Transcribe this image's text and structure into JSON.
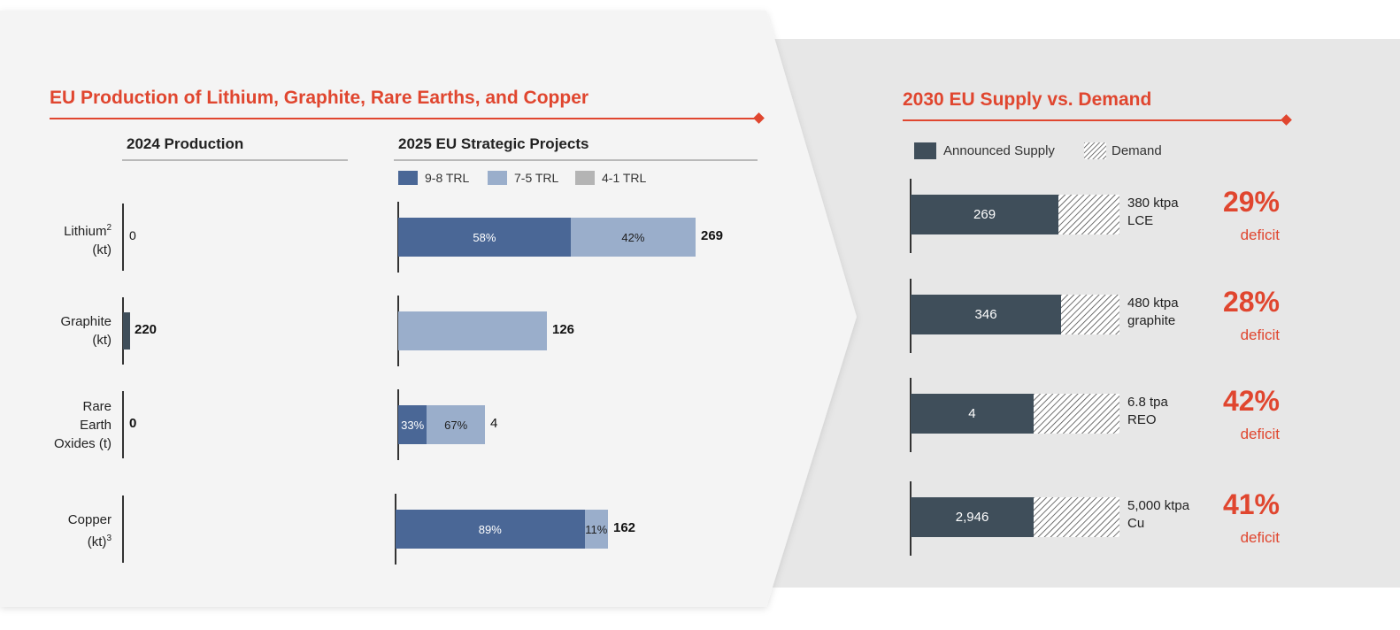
{
  "colors": {
    "accent": "#e0462f",
    "trl_9_8": "#4a6796",
    "trl_7_5": "#9aaecb",
    "trl_4_1": "#b4b4b4",
    "announced_supply": "#3f4e5a",
    "left_panel_bg": "#f4f4f4",
    "right_panel_bg": "#e7e7e7"
  },
  "left_panel": {
    "title": "EU Production of Lithium, Graphite, Rare Earths, and Copper",
    "production_header": "2024 Production",
    "projects_header": "2025 EU Strategic Projects",
    "legend": [
      {
        "label": "9-8 TRL",
        "color": "#4a6796"
      },
      {
        "label": "7-5 TRL",
        "color": "#9aaecb"
      },
      {
        "label": "4-1 TRL",
        "color": "#b4b4b4"
      }
    ],
    "rows": [
      {
        "label_lines": [
          "Lithium",
          "(kt)"
        ],
        "footnote": "2",
        "footnote_line": 0
      },
      {
        "label_lines": [
          "Graphite",
          "(kt)"
        ],
        "footnote": "",
        "footnote_line": 0
      },
      {
        "label_lines": [
          "Rare",
          "Earth",
          "Oxides (t)"
        ],
        "footnote": "",
        "footnote_line": 0
      },
      {
        "label_lines": [
          "Copper",
          "(kt)"
        ],
        "footnote": "3",
        "footnote_line": 1
      }
    ]
  },
  "right_panel": {
    "title": "2030 EU Supply vs. Demand",
    "legend": {
      "supply": "Announced Supply",
      "demand": "Demand"
    }
  },
  "chart_data": [
    {
      "type": "bar",
      "title": "2024 Production",
      "categories": [
        "Lithium (kt)",
        "Graphite (kt)",
        "Rare Earth Oxides (t)",
        "Copper (kt)"
      ],
      "values": [
        0,
        220,
        0,
        null
      ],
      "value_labels": [
        "0",
        "220",
        "0",
        ""
      ]
    },
    {
      "type": "bar",
      "stacked": true,
      "title": "2025 EU Strategic Projects",
      "categories": [
        "Lithium (kt)",
        "Graphite (kt)",
        "Rare Earth Oxides (t)",
        "Copper (kt)"
      ],
      "totals": [
        269,
        126,
        4,
        162
      ],
      "series": [
        {
          "name": "9-8 TRL",
          "shares_pct": [
            58,
            0,
            33,
            89
          ],
          "labels": [
            "58%",
            "",
            "33%",
            "89%"
          ]
        },
        {
          "name": "7-5 TRL",
          "shares_pct": [
            42,
            100,
            67,
            11
          ],
          "labels": [
            "42%",
            "",
            "67%",
            "11%"
          ]
        },
        {
          "name": "4-1 TRL",
          "shares_pct": [
            0,
            0,
            0,
            0
          ],
          "labels": [
            "",
            "",
            "",
            ""
          ]
        }
      ]
    },
    {
      "type": "bar",
      "stacked": true,
      "title": "2030 EU Supply vs. Demand",
      "rows": [
        {
          "supply": 269,
          "supply_label": "269",
          "demand": 380,
          "demand_label_lines": [
            "380 ktpa",
            "LCE"
          ],
          "deficit": "29%",
          "deficit_word": "deficit"
        },
        {
          "supply": 346,
          "supply_label": "346",
          "demand": 480,
          "demand_label_lines": [
            "480 ktpa",
            "graphite"
          ],
          "deficit": "28%",
          "deficit_word": "deficit"
        },
        {
          "supply": 4,
          "supply_label": "4",
          "demand": 6.8,
          "demand_label_lines": [
            "6.8 tpa",
            "REO"
          ],
          "deficit": "42%",
          "deficit_word": "deficit"
        },
        {
          "supply": 2946,
          "supply_label": "2,946",
          "demand": 5000,
          "demand_label_lines": [
            "5,000 ktpa",
            "Cu"
          ],
          "deficit": "41%",
          "deficit_word": "deficit"
        }
      ]
    }
  ]
}
